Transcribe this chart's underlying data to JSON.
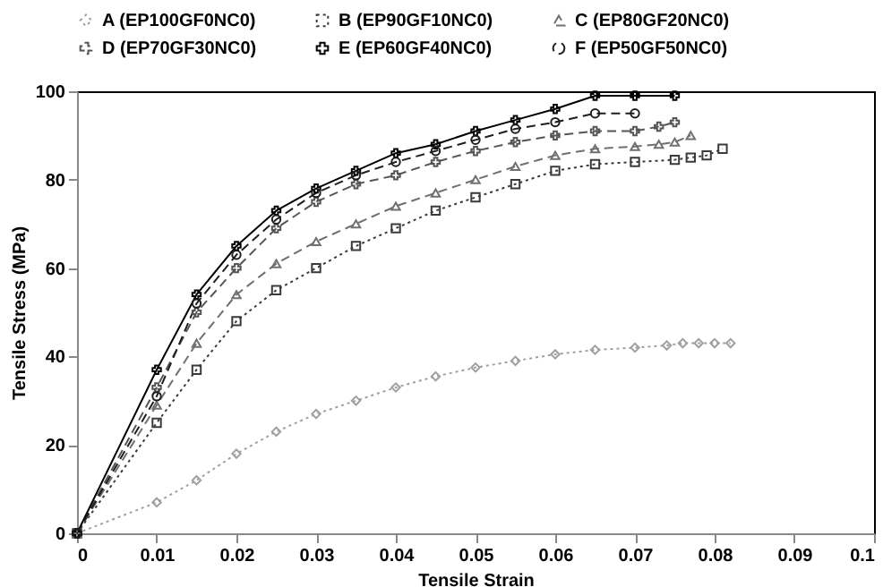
{
  "chart_data": {
    "type": "line",
    "xlabel": "Tensile Strain",
    "ylabel": "Tensile Stress (MPa)",
    "xlim": [
      0,
      0.1
    ],
    "xticks": [
      0,
      0.01,
      0.02,
      0.03,
      0.04,
      0.05,
      0.06,
      0.07,
      0.08,
      0.09,
      0.1
    ],
    "ylim": [
      0,
      100
    ],
    "yticks": [
      0,
      20,
      40,
      60,
      80,
      100
    ],
    "grid": false,
    "legend": "top",
    "series": [
      {
        "name": "A (EP100GF0NC0)",
        "color": "#a0a0a0",
        "marker": "diamond",
        "line_style": "dotted",
        "x": [
          0,
          0.01,
          0.015,
          0.02,
          0.025,
          0.03,
          0.035,
          0.04,
          0.045,
          0.05,
          0.055,
          0.06,
          0.065,
          0.07,
          0.074,
          0.076,
          0.078,
          0.08,
          0.082
        ],
        "values": [
          0,
          7,
          12,
          18,
          23,
          27,
          30,
          33,
          35.5,
          37.5,
          39,
          40.5,
          41.5,
          42,
          42.5,
          43,
          43,
          43,
          43
        ]
      },
      {
        "name": "B (EP90GF10NC0)",
        "color": "#3a3a3a",
        "marker": "square",
        "line_style": "dotted",
        "x": [
          0,
          0.01,
          0.015,
          0.02,
          0.025,
          0.03,
          0.035,
          0.04,
          0.045,
          0.05,
          0.055,
          0.06,
          0.065,
          0.07,
          0.075,
          0.077,
          0.079,
          0.081
        ],
        "values": [
          0,
          25,
          37,
          48,
          55,
          60,
          65,
          69,
          73,
          76,
          79,
          82,
          83.5,
          84,
          84.5,
          85,
          85.5,
          87
        ]
      },
      {
        "name": "C (EP80GF20NC0)",
        "color": "#707070",
        "marker": "triangle",
        "line_style": "dashed",
        "x": [
          0,
          0.01,
          0.015,
          0.02,
          0.025,
          0.03,
          0.035,
          0.04,
          0.045,
          0.05,
          0.055,
          0.06,
          0.065,
          0.07,
          0.073,
          0.075,
          0.077
        ],
        "values": [
          0,
          29,
          43,
          54,
          61,
          66,
          70,
          74,
          77,
          80,
          83,
          85.5,
          87,
          87.5,
          88,
          88.5,
          90
        ]
      },
      {
        "name": "D (EP70GF30NC0)",
        "color": "#555555",
        "marker": "cross",
        "line_style": "dashed",
        "x": [
          0,
          0.01,
          0.015,
          0.02,
          0.025,
          0.03,
          0.035,
          0.04,
          0.045,
          0.05,
          0.055,
          0.06,
          0.065,
          0.07,
          0.073,
          0.075
        ],
        "values": [
          0,
          33,
          50,
          60,
          69,
          75,
          79,
          81,
          84,
          86.5,
          88.5,
          90,
          91,
          91,
          92,
          93
        ]
      },
      {
        "name": "E (EP60GF40NC0)",
        "color": "#000000",
        "marker": "cross",
        "line_style": "solid",
        "x": [
          0,
          0.01,
          0.015,
          0.02,
          0.025,
          0.03,
          0.035,
          0.04,
          0.045,
          0.05,
          0.055,
          0.06,
          0.065,
          0.07,
          0.075
        ],
        "values": [
          0,
          37,
          54,
          65,
          73,
          78,
          82,
          86,
          88,
          91,
          93.5,
          96,
          99,
          99,
          99
        ]
      },
      {
        "name": "F (EP50GF50NC0)",
        "color": "#1f1f1f",
        "marker": "circle",
        "line_style": "dashed",
        "x": [
          0,
          0.01,
          0.015,
          0.02,
          0.025,
          0.03,
          0.035,
          0.04,
          0.045,
          0.05,
          0.055,
          0.06,
          0.065,
          0.07
        ],
        "values": [
          0,
          31,
          52,
          63,
          71,
          77,
          81,
          84,
          86.5,
          89,
          91.5,
          93,
          95,
          95
        ]
      }
    ]
  }
}
